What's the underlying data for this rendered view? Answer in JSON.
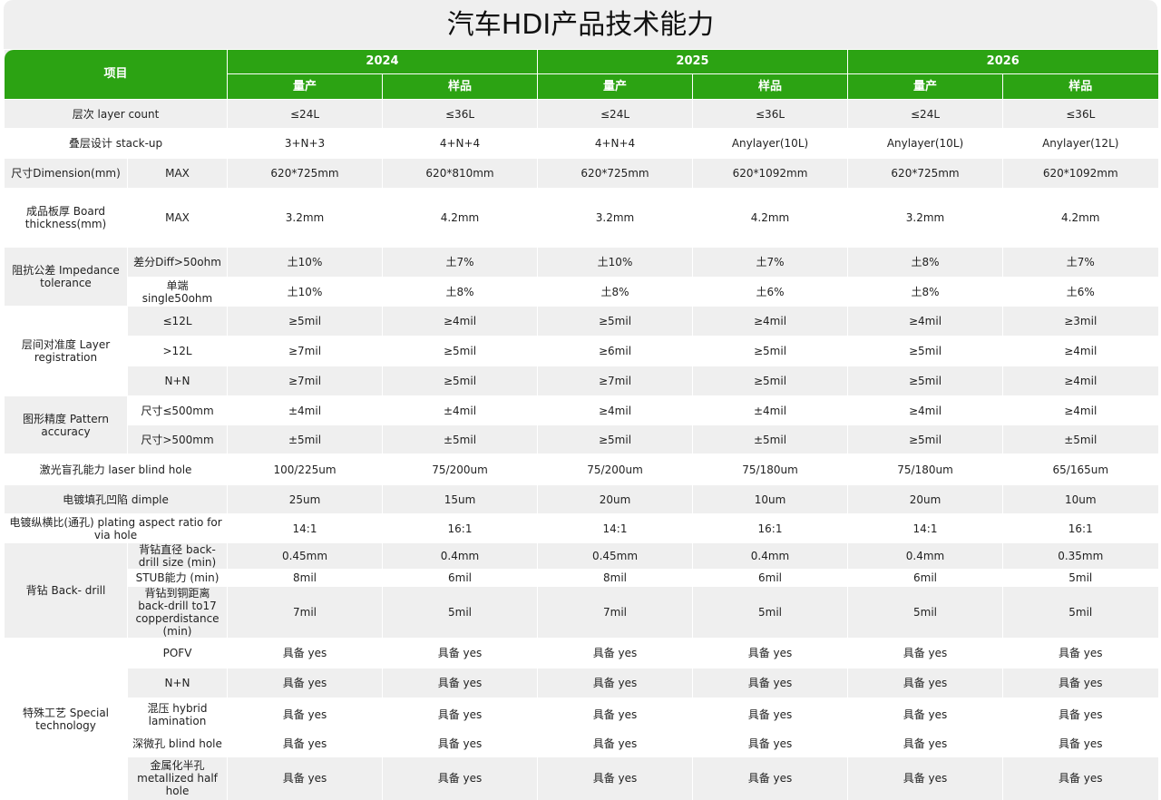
{
  "title": "汽车HDI产品技术能力",
  "header": {
    "item_label": "项目",
    "years": [
      "2024",
      "2025",
      "2026"
    ],
    "sub": [
      "量产",
      "样品",
      "量产",
      "样品",
      "量产",
      "样品"
    ]
  },
  "colors": {
    "header_green": "#2ca313",
    "row_gray": "#efefef"
  },
  "rows": [
    {
      "label": "层次  layer count",
      "values": [
        "≤24L",
        "≤36L",
        "≤24L",
        "≤36L",
        "≤24L",
        "≤36L"
      ]
    },
    {
      "label": "叠层设计 stack-up",
      "values": [
        "3+N+3",
        "4+N+4",
        "4+N+4",
        "Anylayer(10L)",
        "Anylayer(10L)",
        "Anylayer(12L)"
      ]
    },
    {
      "group": "尺寸Dimension(mm)",
      "items": [
        {
          "sub": "MAX",
          "values": [
            "620*725mm",
            "620*810mm",
            "620*725mm",
            "620*1092mm",
            "620*725mm",
            "620*1092mm"
          ]
        }
      ]
    },
    {
      "group": "成品板厚 Board thickness(mm)",
      "items": [
        {
          "sub": "MAX",
          "values": [
            "3.2mm",
            "4.2mm",
            "3.2mm",
            "4.2mm",
            "3.2mm",
            "4.2mm"
          ]
        }
      ]
    },
    {
      "group": "阻抗公差 Impedance tolerance",
      "items": [
        {
          "sub": "差分Diff>50ohm",
          "values": [
            "土10%",
            "土7%",
            "土10%",
            "土7%",
            "土8%",
            "土7%"
          ]
        },
        {
          "sub": "单端 single50ohm",
          "values": [
            "土10%",
            "土8%",
            "土8%",
            "土6%",
            "土8%",
            "土6%"
          ]
        }
      ]
    },
    {
      "group": "层间对准度 Layer registration",
      "items": [
        {
          "sub": "≤12L",
          "values": [
            "≥5mil",
            "≥4mil",
            "≥5mil",
            "≥4mil",
            "≥4mil",
            "≥3mil"
          ]
        },
        {
          "sub": ">12L",
          "values": [
            "≥7mil",
            "≥5mil",
            "≥6mil",
            "≥5mil",
            "≥5mil",
            "≥4mil"
          ]
        },
        {
          "sub": "N+N",
          "values": [
            "≥7mil",
            "≥5mil",
            "≥7mil",
            "≥5mil",
            "≥5mil",
            "≥4mil"
          ]
        }
      ]
    },
    {
      "group": "图形精度 Pattern accuracy",
      "items": [
        {
          "sub": "尺寸≤500mm",
          "values": [
            "±4mil",
            "±4mil",
            "≥4mil",
            "±4mil",
            "≥4mil",
            "≥4mil"
          ]
        },
        {
          "sub": "尺寸>500mm",
          "values": [
            "±5mil",
            "±5mil",
            "≥5mil",
            "±5mil",
            "≥5mil",
            "±5mil"
          ]
        }
      ]
    },
    {
      "label": "激光盲孔能力 laser blind hole",
      "values": [
        "100/225um",
        "75/200um",
        "75/200um",
        "75/180um",
        "75/180um",
        "65/165um"
      ]
    },
    {
      "label": "电镀填孔凹陷 dimple",
      "values": [
        "25um",
        "15um",
        "20um",
        "10um",
        "20um",
        "10um"
      ]
    },
    {
      "label": "电镀纵横比(通孔) plating aspect ratio for via hole",
      "values": [
        "14:1",
        "16:1",
        "14:1",
        "16:1",
        "14:1",
        "16:1"
      ]
    },
    {
      "group": "背钻 Back- drill",
      "items": [
        {
          "sub": "背钻直径 back-drill size (min)",
          "values": [
            "0.45mm",
            "0.4mm",
            "0.45mm",
            "0.4mm",
            "0.4mm",
            "0.35mm"
          ]
        },
        {
          "sub": "STUB能力 (min)",
          "values": [
            "8mil",
            "6mil",
            "8mil",
            "6mil",
            "6mil",
            "5mil"
          ]
        },
        {
          "sub": "背钻到铜距离 back-drill to17 copperdistance (min)",
          "values": [
            "7mil",
            "5mil",
            "7mil",
            "5mil",
            "5mil",
            "5mil"
          ]
        }
      ]
    },
    {
      "group": "特殊工艺 Special  technology",
      "items": [
        {
          "sub": "POFV",
          "values": [
            "具备 yes",
            "具备 yes",
            "具备 yes",
            "具备 yes",
            "具备 yes",
            "具备 yes"
          ]
        },
        {
          "sub": "N+N",
          "values": [
            "具备 yes",
            "具备 yes",
            "具备 yes",
            "具备 yes",
            "具备 yes",
            "具备 yes"
          ]
        },
        {
          "sub": "混压 hybrid lamination",
          "values": [
            "具备 yes",
            "具备 yes",
            "具备 yes",
            "具备 yes",
            "具备 yes",
            "具备 yes"
          ]
        },
        {
          "sub": "深微孔 blind hole",
          "values": [
            "具备 yes",
            "具备 yes",
            "具备 yes",
            "具备 yes",
            "具备 yes",
            "具备 yes"
          ]
        },
        {
          "sub": "金属化半孔 metallized half hole",
          "values": [
            "具备 yes",
            "具备 yes",
            "具备 yes",
            "具备 yes",
            "具备 yes",
            "具备 yes"
          ]
        }
      ]
    }
  ]
}
